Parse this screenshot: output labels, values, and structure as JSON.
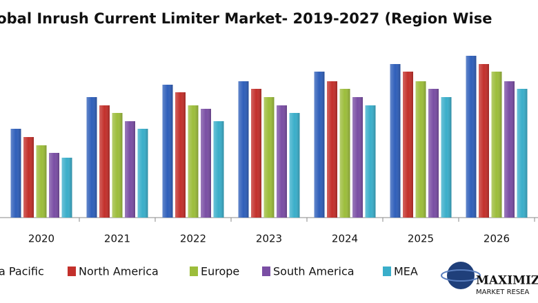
{
  "chart_data": {
    "type": "bar",
    "title": "lobal Inrush Current Limiter Market- 2019-2027 (Region Wise",
    "categories": [
      "2020",
      "2021",
      "2022",
      "2023",
      "2024",
      "2025",
      "2026"
    ],
    "series": [
      {
        "name": "a Pacific",
        "color": "#2f5fba",
        "values": [
          129,
          175,
          193,
          198,
          212,
          223,
          235
        ]
      },
      {
        "name": "North America",
        "color": "#c3302b",
        "values": [
          117,
          163,
          182,
          187,
          198,
          212,
          223
        ]
      },
      {
        "name": "Europe",
        "color": "#9cbd3b",
        "values": [
          105,
          152,
          163,
          175,
          187,
          198,
          212
        ]
      },
      {
        "name": "South America",
        "color": "#7a4ea4",
        "values": [
          94,
          140,
          158,
          163,
          175,
          187,
          198
        ]
      },
      {
        "name": "MEA",
        "color": "#3aaeca",
        "values": [
          87,
          129,
          140,
          152,
          163,
          175,
          187
        ]
      }
    ],
    "logo": {
      "name": "MAXIMIZ",
      "subtitle": "MARKET RESEA"
    }
  }
}
